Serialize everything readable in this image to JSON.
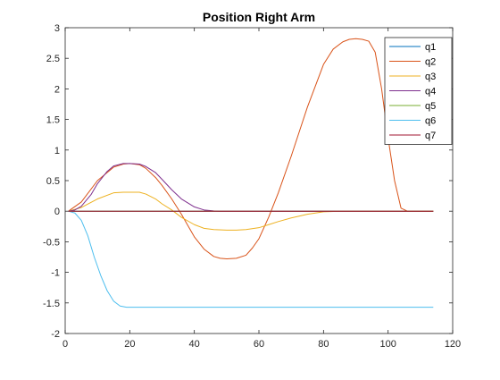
{
  "chart_data": {
    "type": "line",
    "title": "Position Right Arm",
    "xlabel": "",
    "ylabel": "",
    "xlim": [
      0,
      120
    ],
    "ylim": [
      -2,
      3
    ],
    "xticks": [
      0,
      20,
      40,
      60,
      80,
      100,
      120
    ],
    "yticks": [
      -2,
      -1.5,
      -1,
      -0.5,
      0,
      0.5,
      1,
      1.5,
      2,
      2.5,
      3
    ],
    "xtick_labels": [
      "0",
      "20",
      "40",
      "60",
      "80",
      "100",
      "120"
    ],
    "ytick_labels": [
      "-2",
      "-1.5",
      "-1",
      "-0.5",
      "0",
      "0.5",
      "1",
      "1.5",
      "2",
      "2.5",
      "3"
    ],
    "grid": false,
    "legend_position": "top-right",
    "series": [
      {
        "name": "q1",
        "color": "#0072BD",
        "x": [
          1,
          114
        ],
        "y": [
          0,
          0
        ]
      },
      {
        "name": "q2",
        "color": "#D95319",
        "x": [
          1,
          5,
          10,
          15,
          18,
          20,
          23,
          25,
          28,
          30,
          33,
          36,
          40,
          43,
          46,
          48,
          50,
          53,
          56,
          58,
          60,
          63,
          66,
          70,
          75,
          80,
          83,
          86,
          88,
          90,
          92,
          94,
          96,
          98,
          100,
          102,
          104,
          106,
          110,
          114
        ],
        "y": [
          0,
          0.15,
          0.5,
          0.72,
          0.77,
          0.78,
          0.76,
          0.7,
          0.55,
          0.42,
          0.2,
          -0.05,
          -0.42,
          -0.62,
          -0.74,
          -0.77,
          -0.78,
          -0.77,
          -0.72,
          -0.6,
          -0.45,
          -0.1,
          0.3,
          0.9,
          1.7,
          2.4,
          2.65,
          2.77,
          2.81,
          2.82,
          2.81,
          2.78,
          2.6,
          2.0,
          1.2,
          0.5,
          0.05,
          0,
          0,
          0
        ]
      },
      {
        "name": "q3",
        "color": "#EDB120",
        "x": [
          1,
          5,
          10,
          15,
          18,
          20,
          23,
          25,
          28,
          30,
          33,
          36,
          40,
          43,
          46,
          50,
          53,
          56,
          60,
          63,
          66,
          70,
          75,
          80,
          85,
          90,
          95,
          100,
          105,
          110,
          114
        ],
        "y": [
          0,
          0.06,
          0.2,
          0.3,
          0.31,
          0.31,
          0.31,
          0.28,
          0.2,
          0.12,
          0.02,
          -0.1,
          -0.22,
          -0.28,
          -0.3,
          -0.31,
          -0.31,
          -0.3,
          -0.27,
          -0.22,
          -0.17,
          -0.11,
          -0.05,
          -0.01,
          0,
          0,
          0,
          0,
          0,
          0,
          0
        ]
      },
      {
        "name": "q4",
        "color": "#7E2F8E",
        "x": [
          1,
          3,
          5,
          8,
          10,
          13,
          15,
          18,
          20,
          23,
          25,
          28,
          30,
          33,
          36,
          40,
          43,
          46,
          48,
          50,
          55,
          60,
          80,
          100,
          114
        ],
        "y": [
          0,
          0.02,
          0.08,
          0.27,
          0.45,
          0.65,
          0.74,
          0.78,
          0.78,
          0.77,
          0.73,
          0.63,
          0.52,
          0.35,
          0.2,
          0.07,
          0.02,
          0.005,
          0,
          0,
          0,
          0,
          0,
          0,
          0
        ]
      },
      {
        "name": "q5",
        "color": "#77AC30",
        "x": [
          1,
          114
        ],
        "y": [
          0,
          0
        ]
      },
      {
        "name": "q6",
        "color": "#4DBEEE",
        "x": [
          1,
          3,
          5,
          7,
          9,
          11,
          13,
          15,
          17,
          19,
          21,
          25,
          40,
          60,
          80,
          100,
          114
        ],
        "y": [
          0,
          -0.03,
          -0.15,
          -0.4,
          -0.75,
          -1.05,
          -1.3,
          -1.47,
          -1.55,
          -1.57,
          -1.57,
          -1.57,
          -1.57,
          -1.57,
          -1.57,
          -1.57,
          -1.57
        ]
      },
      {
        "name": "q7",
        "color": "#A2142F",
        "x": [
          1,
          114
        ],
        "y": [
          0,
          0
        ]
      }
    ]
  }
}
